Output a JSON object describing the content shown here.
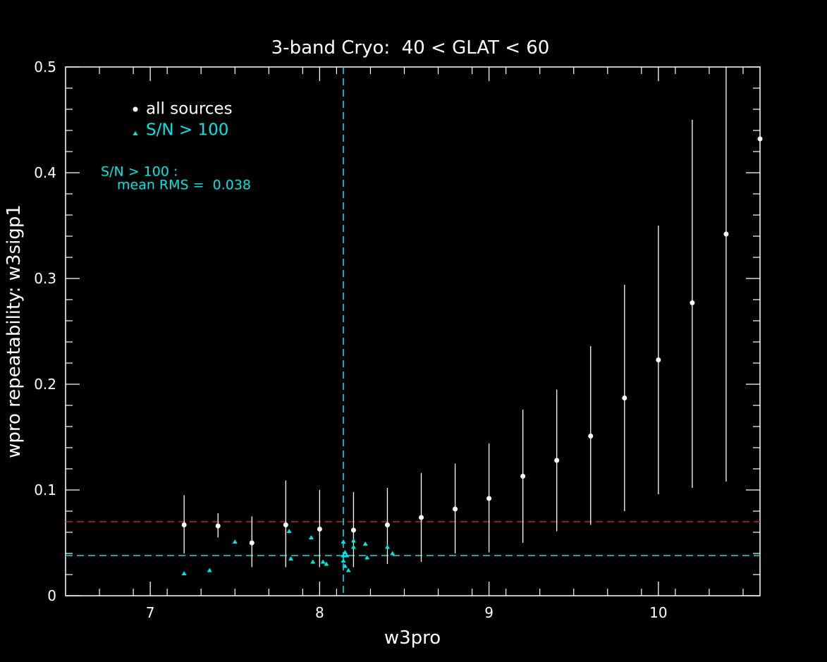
{
  "chart_data": {
    "type": "scatter",
    "title": "3-band Cryo:  40 < GLAT < 60",
    "xlabel": "w3pro",
    "ylabel": "wpro repeatability: w3sigp1",
    "xlim": [
      6.5,
      10.6
    ],
    "ylim": [
      0,
      0.5
    ],
    "x_ticks": [
      "7",
      "8",
      "9",
      "10"
    ],
    "y_ticks": [
      "0",
      "0.1",
      "0.2",
      "0.3",
      "0.4",
      "0.5"
    ],
    "legend": {
      "placement": "top-left",
      "entries": [
        "all sources",
        "S/N > 100"
      ],
      "note_line1": "S/N > 100 :",
      "note_line2": "mean RMS =  0.038"
    },
    "reference_lines": {
      "vertical_x": 8.14,
      "horizontal_red_y": 0.07,
      "horizontal_cyan_y": 0.038
    },
    "colors": {
      "background": "#000000",
      "axes": "#ffffff",
      "all_sources": "#ffffff",
      "high_snr": "#00e5e5",
      "red_line": "#c82020",
      "text": "#ffffff"
    },
    "series": [
      {
        "name": "all sources",
        "points": [
          {
            "x": 7.2,
            "y": 0.067,
            "lo": 0.04,
            "hi": 0.095
          },
          {
            "x": 7.4,
            "y": 0.066,
            "lo": 0.055,
            "hi": 0.078
          },
          {
            "x": 7.6,
            "y": 0.05,
            "lo": 0.027,
            "hi": 0.075
          },
          {
            "x": 7.8,
            "y": 0.067,
            "lo": 0.027,
            "hi": 0.109
          },
          {
            "x": 8.0,
            "y": 0.063,
            "lo": 0.027,
            "hi": 0.1
          },
          {
            "x": 8.2,
            "y": 0.062,
            "lo": 0.027,
            "hi": 0.098
          },
          {
            "x": 8.4,
            "y": 0.067,
            "lo": 0.03,
            "hi": 0.102
          },
          {
            "x": 8.6,
            "y": 0.074,
            "lo": 0.032,
            "hi": 0.116
          },
          {
            "x": 8.8,
            "y": 0.082,
            "lo": 0.04,
            "hi": 0.125
          },
          {
            "x": 9.0,
            "y": 0.092,
            "lo": 0.041,
            "hi": 0.144
          },
          {
            "x": 9.2,
            "y": 0.113,
            "lo": 0.05,
            "hi": 0.176
          },
          {
            "x": 9.4,
            "y": 0.128,
            "lo": 0.061,
            "hi": 0.195
          },
          {
            "x": 9.6,
            "y": 0.151,
            "lo": 0.067,
            "hi": 0.236
          },
          {
            "x": 9.8,
            "y": 0.187,
            "lo": 0.08,
            "hi": 0.294
          },
          {
            "x": 10.0,
            "y": 0.223,
            "lo": 0.096,
            "hi": 0.35
          },
          {
            "x": 10.2,
            "y": 0.277,
            "lo": 0.102,
            "hi": 0.45
          },
          {
            "x": 10.4,
            "y": 0.342,
            "lo": 0.108,
            "hi": 0.5
          },
          {
            "x": 10.6,
            "y": 0.432,
            "lo": null,
            "hi": null
          }
        ]
      },
      {
        "name": "S/N > 100",
        "points": [
          {
            "x": 7.2,
            "y": 0.021
          },
          {
            "x": 7.35,
            "y": 0.024
          },
          {
            "x": 7.5,
            "y": 0.051
          },
          {
            "x": 7.82,
            "y": 0.061
          },
          {
            "x": 7.83,
            "y": 0.035
          },
          {
            "x": 7.95,
            "y": 0.055
          },
          {
            "x": 7.96,
            "y": 0.032
          },
          {
            "x": 8.02,
            "y": 0.032
          },
          {
            "x": 8.04,
            "y": 0.03
          },
          {
            "x": 8.14,
            "y": 0.051
          },
          {
            "x": 8.14,
            "y": 0.038
          },
          {
            "x": 8.14,
            "y": 0.033
          },
          {
            "x": 8.15,
            "y": 0.041
          },
          {
            "x": 8.15,
            "y": 0.028
          },
          {
            "x": 8.16,
            "y": 0.038
          },
          {
            "x": 8.17,
            "y": 0.024
          },
          {
            "x": 8.2,
            "y": 0.052
          },
          {
            "x": 8.2,
            "y": 0.046
          },
          {
            "x": 8.27,
            "y": 0.049
          },
          {
            "x": 8.28,
            "y": 0.036
          },
          {
            "x": 8.4,
            "y": 0.046
          },
          {
            "x": 8.43,
            "y": 0.04
          }
        ]
      }
    ]
  }
}
